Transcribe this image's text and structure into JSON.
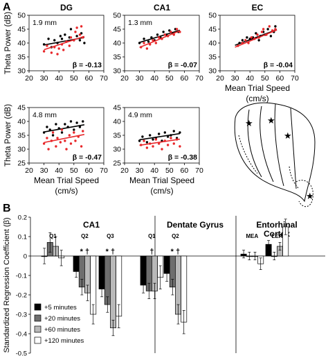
{
  "figure": {
    "panel_a_label": "A",
    "panel_b_label": "B"
  },
  "chart_data": [
    {
      "type": "scatter",
      "title": "DG",
      "annotation": "1.9 mm",
      "beta": "β = -0.13",
      "xlabel": "",
      "ylabel": "Theta Power (dB)",
      "xlim": [
        20,
        70
      ],
      "ylim": [
        30,
        50
      ],
      "xticks": [
        "20",
        "30",
        "40",
        "50",
        "60",
        "70"
      ],
      "yticks": [
        "30",
        "35",
        "40",
        "45",
        "50"
      ],
      "series": [
        {
          "color": "#000000",
          "points": [
            [
              30,
              39.5
            ],
            [
              33,
              41.5
            ],
            [
              35,
              38.5
            ],
            [
              37,
              41
            ],
            [
              39,
              40
            ],
            [
              41,
              42.5
            ],
            [
              42,
              41.5
            ],
            [
              44,
              43
            ],
            [
              45,
              40.5
            ],
            [
              47,
              42
            ],
            [
              48,
              45
            ],
            [
              50,
              41
            ],
            [
              52,
              42.5
            ],
            [
              54,
              41
            ],
            [
              55,
              43.5
            ],
            [
              57,
              40
            ]
          ],
          "line": [
            [
              30,
              39.3
            ],
            [
              57,
              42.0
            ]
          ]
        },
        {
          "color": "#e8272a",
          "points": [
            [
              30,
              37
            ],
            [
              32,
              39
            ],
            [
              35,
              36.5
            ],
            [
              37,
              38.5
            ],
            [
              39,
              36
            ],
            [
              40,
              38
            ],
            [
              42,
              39.5
            ],
            [
              43,
              37.5
            ],
            [
              45,
              40.5
            ],
            [
              47,
              39
            ],
            [
              48,
              42
            ],
            [
              50,
              41
            ],
            [
              51,
              44
            ],
            [
              52,
              45.5
            ],
            [
              54,
              43
            ],
            [
              55,
              46
            ],
            [
              56,
              42
            ]
          ],
          "line": [
            [
              30,
              37.6
            ],
            [
              57,
              42.4
            ]
          ]
        }
      ]
    },
    {
      "type": "scatter",
      "title": "CA1",
      "annotation": "1.3 mm",
      "beta": "β = -0.07",
      "xlabel": "",
      "ylabel": "",
      "xlim": [
        20,
        70
      ],
      "ylim": [
        30,
        50
      ],
      "xticks": [
        "20",
        "30",
        "40",
        "50",
        "60",
        "70"
      ],
      "yticks": [
        "30",
        "35",
        "40",
        "45",
        "50"
      ],
      "series": [
        {
          "color": "#000000",
          "points": [
            [
              30,
              40
            ],
            [
              33,
              41.5
            ],
            [
              36,
              40.5
            ],
            [
              38,
              42
            ],
            [
              40,
              41
            ],
            [
              42,
              43
            ],
            [
              44,
              42
            ],
            [
              46,
              44
            ],
            [
              48,
              43
            ],
            [
              50,
              44.5
            ],
            [
              52,
              43.5
            ],
            [
              54,
              45
            ],
            [
              56,
              44
            ]
          ],
          "line": [
            [
              30,
              40.2
            ],
            [
              57,
              44.6
            ]
          ]
        },
        {
          "color": "#e8272a",
          "points": [
            [
              31,
              38.5
            ],
            [
              33,
              40
            ],
            [
              35,
              38
            ],
            [
              37,
              39.5
            ],
            [
              39,
              41
            ],
            [
              41,
              40
            ],
            [
              43,
              42
            ],
            [
              45,
              41.5
            ],
            [
              47,
              43
            ],
            [
              49,
              42.5
            ],
            [
              51,
              44
            ],
            [
              53,
              43
            ],
            [
              55,
              45
            ],
            [
              57,
              44
            ]
          ],
          "line": [
            [
              30,
              38.4
            ],
            [
              57,
              44.4
            ]
          ]
        }
      ]
    },
    {
      "type": "scatter",
      "title": "EC",
      "annotation": "",
      "beta": "β = -0.04",
      "xlabel": "Mean Trial Speed\n(cm/s)",
      "ylabel": "",
      "xlim": [
        20,
        70
      ],
      "ylim": [
        30,
        50
      ],
      "xticks": [
        "20",
        "30",
        "40",
        "50",
        "60",
        "70"
      ],
      "yticks": [
        "30",
        "35",
        "40",
        "45",
        "50"
      ],
      "series": [
        {
          "color": "#000000",
          "points": [
            [
              33,
              40
            ],
            [
              35,
              41
            ],
            [
              38,
              42
            ],
            [
              40,
              41.5
            ],
            [
              42,
              42
            ],
            [
              44,
              43.5
            ],
            [
              46,
              41
            ],
            [
              47,
              42.5
            ],
            [
              49,
              44
            ],
            [
              50,
              43
            ],
            [
              52,
              45
            ],
            [
              54,
              42.5
            ],
            [
              56,
              44
            ],
            [
              57,
              46
            ]
          ],
          "line": [
            [
              30,
              39.2
            ],
            [
              58,
              44.8
            ]
          ]
        },
        {
          "color": "#e8272a",
          "points": [
            [
              32,
              39
            ],
            [
              35,
              40
            ],
            [
              37,
              41
            ],
            [
              39,
              40
            ],
            [
              41,
              42
            ],
            [
              43,
              41.5
            ],
            [
              45,
              43
            ],
            [
              46,
              42
            ],
            [
              48,
              44
            ],
            [
              49,
              45
            ],
            [
              51,
              43
            ],
            [
              53,
              46
            ],
            [
              55,
              44.5
            ],
            [
              57,
              45
            ]
          ],
          "line": [
            [
              30,
              38.5
            ],
            [
              58,
              44.7
            ]
          ]
        }
      ]
    },
    {
      "type": "scatter",
      "title": "",
      "annotation": "4.8 mm",
      "beta": "β = -0.47",
      "xlabel": "Mean Trial Speed\n(cm/s)",
      "ylabel": "Theta Power (dB)",
      "xlim": [
        20,
        70
      ],
      "ylim": [
        25,
        45
      ],
      "xticks": [
        "20",
        "30",
        "40",
        "50",
        "60",
        "70"
      ],
      "yticks": [
        "25",
        "30",
        "35",
        "40",
        "45"
      ],
      "series": [
        {
          "color": "#000000",
          "points": [
            [
              30,
              36
            ],
            [
              32,
              38
            ],
            [
              34,
              37
            ],
            [
              36,
              35
            ],
            [
              38,
              39
            ],
            [
              40,
              37.5
            ],
            [
              42,
              36
            ],
            [
              44,
              39
            ],
            [
              46,
              38
            ],
            [
              48,
              40
            ],
            [
              50,
              37
            ],
            [
              52,
              39.5
            ],
            [
              54,
              38
            ],
            [
              56,
              40
            ]
          ],
          "line": [
            [
              30,
              36.2
            ],
            [
              57,
              38.8
            ]
          ]
        },
        {
          "color": "#e8272a",
          "points": [
            [
              30,
              32
            ],
            [
              32,
              34
            ],
            [
              33,
              30
            ],
            [
              35,
              33
            ],
            [
              36,
              36
            ],
            [
              38,
              31
            ],
            [
              39,
              34
            ],
            [
              41,
              32.5
            ],
            [
              42,
              37
            ],
            [
              44,
              33
            ],
            [
              45,
              30
            ],
            [
              47,
              35
            ],
            [
              48,
              32
            ],
            [
              50,
              36
            ],
            [
              51,
              33
            ],
            [
              53,
              34.5
            ],
            [
              55,
              31
            ],
            [
              56,
              36.5
            ]
          ],
          "line": [
            [
              30,
              32.4
            ],
            [
              57,
              35.3
            ]
          ]
        }
      ]
    },
    {
      "type": "scatter",
      "title": "",
      "annotation": "4.9 mm",
      "beta": "β = -0.38",
      "xlabel": "Mean Trial Speed\n(cm/s)",
      "ylabel": "",
      "xlim": [
        20,
        70
      ],
      "ylim": [
        25,
        45
      ],
      "xticks": [
        "20",
        "30",
        "40",
        "50",
        "60",
        "70"
      ],
      "yticks": [
        "25",
        "30",
        "35",
        "40",
        "45"
      ],
      "series": [
        {
          "color": "#000000",
          "points": [
            [
              30,
              33
            ],
            [
              32,
              34.5
            ],
            [
              35,
              32.5
            ],
            [
              37,
              35
            ],
            [
              39,
              33.5
            ],
            [
              41,
              34
            ],
            [
              43,
              35.5
            ],
            [
              45,
              33
            ],
            [
              47,
              36
            ],
            [
              49,
              34.5
            ],
            [
              51,
              35
            ],
            [
              53,
              36.5
            ],
            [
              55,
              34
            ],
            [
              57,
              36
            ]
          ],
          "line": [
            [
              30,
              33.4
            ],
            [
              57,
              35.6
            ]
          ]
        },
        {
          "color": "#e8272a",
          "points": [
            [
              31,
              31.5
            ],
            [
              33,
              33
            ],
            [
              35,
              30.5
            ],
            [
              37,
              32
            ],
            [
              39,
              31
            ],
            [
              41,
              33.5
            ],
            [
              43,
              32
            ],
            [
              45,
              30
            ],
            [
              47,
              33
            ],
            [
              49,
              31.5
            ],
            [
              51,
              34
            ],
            [
              53,
              32
            ],
            [
              55,
              33.5
            ],
            [
              57,
              31
            ]
          ],
          "line": [
            [
              30,
              31.4
            ],
            [
              57,
              33.6
            ]
          ]
        }
      ]
    },
    {
      "type": "bar",
      "title": "",
      "ylabel": "Standardized Regression Coefficient (β)",
      "ylim": [
        -0.5,
        0.2
      ],
      "yticks": [
        "0.2",
        "0.1",
        "0",
        "-0.1",
        "-0.2",
        "-0.3",
        "-0.4",
        "-0.5"
      ],
      "section_titles": [
        "CA1",
        "Dentate Gyrus",
        "Entorhinal\nCortex"
      ],
      "group_labels": [
        "Q1",
        "Q2",
        "Q3",
        "Q1",
        "Q2",
        "MEA",
        "LEA"
      ],
      "group_marks": [
        "",
        "*  †",
        "*  †",
        "†",
        "*  †",
        "",
        ""
      ],
      "legend": [
        "+5 minutes",
        "+20 minutes",
        "+60 minutes",
        "+120 minutes"
      ],
      "series_colors": [
        "#000000",
        "#6e6e6e",
        "#b9b9b9",
        "#ffffff"
      ],
      "series": [
        {
          "name": "+5 minutes",
          "values": [
            0.0,
            -0.08,
            -0.17,
            -0.15,
            -0.09,
            0.01,
            0.06
          ],
          "errors": [
            0.04,
            0.03,
            0.04,
            0.04,
            0.04,
            0.02,
            0.02
          ]
        },
        {
          "name": "+20 minutes",
          "values": [
            0.07,
            -0.16,
            -0.25,
            -0.18,
            -0.16,
            0.0,
            0.0
          ],
          "errors": [
            0.05,
            0.04,
            0.04,
            0.04,
            0.04,
            0.02,
            0.02
          ]
        },
        {
          "name": "+60 minutes",
          "values": [
            0.05,
            -0.19,
            -0.37,
            -0.18,
            -0.3,
            0.0,
            0.05
          ],
          "errors": [
            0.05,
            0.04,
            0.04,
            0.04,
            0.05,
            0.02,
            0.02
          ]
        },
        {
          "name": "+120 minutes",
          "values": [
            -0.01,
            -0.3,
            -0.31,
            -0.11,
            -0.34,
            -0.04,
            0.15
          ],
          "errors": [
            0.04,
            0.05,
            0.06,
            0.06,
            0.06,
            0.03,
            0.04
          ]
        }
      ]
    }
  ]
}
